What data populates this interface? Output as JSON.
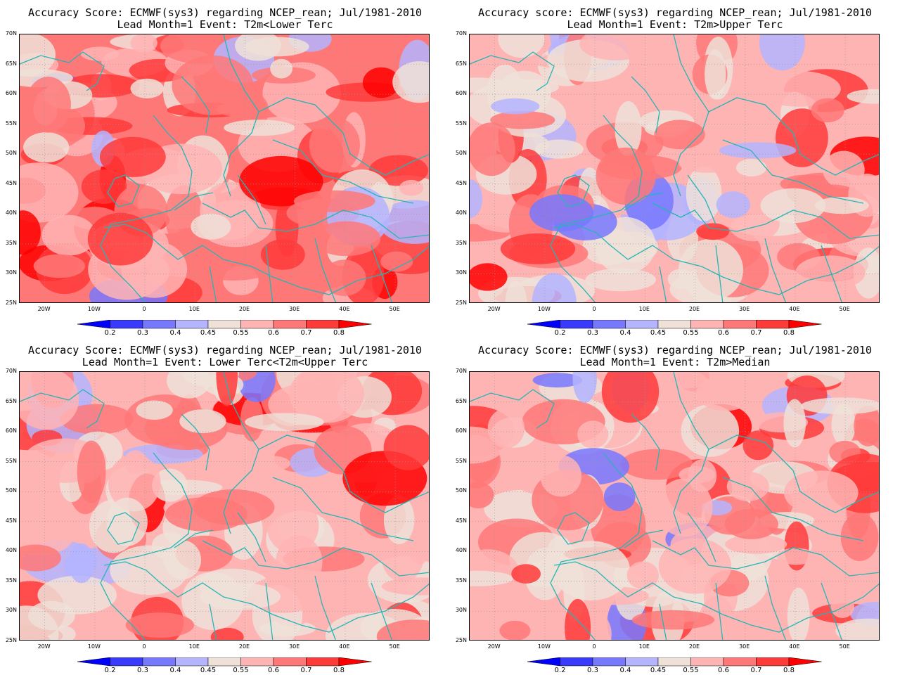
{
  "colorbar": {
    "levels": [
      "0.2",
      "0.3",
      "0.4",
      "0.45",
      "0.55",
      "0.6",
      "0.7",
      "0.8"
    ],
    "colors": [
      "#0000ff",
      "#3a3aff",
      "#7878ff",
      "#b4b4ff",
      "#efe0d8",
      "#ffb4b4",
      "#ff7878",
      "#ff3a3a",
      "#ff0000"
    ]
  },
  "axes": {
    "lat_labels": [
      "70N",
      "65N",
      "60N",
      "55N",
      "50N",
      "45N",
      "40N",
      "35N",
      "30N",
      "25N"
    ],
    "lon_labels": [
      "20W",
      "10W",
      "0",
      "10E",
      "20E",
      "30E",
      "40E",
      "50E"
    ]
  },
  "panels": [
    {
      "title_line1": "Accuracy Score: ECMWF(sys3) regarding NCEP_rean; Jul/1981-2010",
      "title_line2": "Lead Month=1 Event: T2m<Lower Terc",
      "dominant": "#ff7878"
    },
    {
      "title_line1": "Accuracy score: ECMWF(sys3) regarding NCEP_rean; Jul/1981-2010",
      "title_line2": "Lead Month=1 Event: T2m>Upper Terc",
      "dominant": "#ffb4b4"
    },
    {
      "title_line1": "Accuracy Score: ECMWF(sys3) regarding NCEP_rean; Jul/1981-2010",
      "title_line2": "Lead Month=1 Event: Lower Terc<T2m<Upper Terc",
      "dominant": "#ffb4b4"
    },
    {
      "title_line1": "Accuracy Score: ECMWF(sys3) regarding NCEP_rean; Jul/1981-2010",
      "title_line2": "Lead Month=1 Event: T2m>Median",
      "dominant": "#ffb4b4"
    }
  ]
}
